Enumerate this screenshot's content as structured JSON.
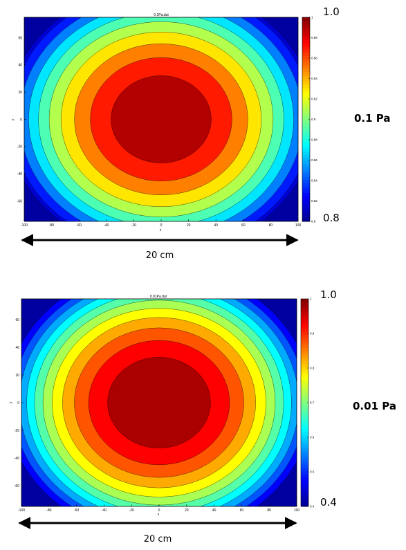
{
  "colors": {
    "jet": [
      "#00008f",
      "#0000ff",
      "#0080ff",
      "#00ffff",
      "#80ff80",
      "#ffff00",
      "#ff8000",
      "#ff0000",
      "#800000"
    ],
    "contour_line": "#000000",
    "arrow": "#000000"
  },
  "chart_data": [
    {
      "type": "heatmap",
      "title": "0.1Pa.dat",
      "xlabel": "x",
      "ylabel": "y",
      "xlim": [
        -100,
        100
      ],
      "ylim": [
        -75,
        75
      ],
      "xticks": [
        -100,
        -80,
        -60,
        -40,
        -20,
        0,
        20,
        40,
        60,
        80,
        100
      ],
      "yticks": [
        -60,
        -40,
        -20,
        0,
        20,
        40,
        60
      ],
      "ytick_labels": [
        "-60",
        "-40",
        "-20",
        "0",
        "20",
        "40",
        "60"
      ],
      "clim": [
        0.8,
        1.0
      ],
      "colorbar_ticks": [
        0.8,
        0.82,
        0.84,
        0.86,
        0.88,
        0.9,
        0.92,
        0.94,
        0.96,
        0.98,
        1.0
      ],
      "colorbar_tick_labels": [
        "0.8",
        "0.82",
        "0.84",
        "0.86",
        "0.88",
        "0.9",
        "0.92",
        "0.94",
        "0.96",
        "0.98",
        "1"
      ],
      "contour_levels": [
        0.82,
        0.84,
        0.86,
        0.88,
        0.9,
        0.92,
        0.94,
        0.96,
        0.98
      ],
      "peak": {
        "x": 0,
        "y": 0,
        "value": 1.0
      },
      "colorbar_max_label": "1.0",
      "colorbar_min_label": "0.8",
      "pressure_label": "0.1 Pa",
      "width_label": "20 cm"
    },
    {
      "type": "heatmap",
      "title": "0.01Pa.dat",
      "xlabel": "x",
      "ylabel": "y",
      "xlim": [
        -100,
        100
      ],
      "ylim": [
        -75,
        75
      ],
      "xticks": [
        -100,
        -80,
        -60,
        -40,
        -20,
        0,
        20,
        40,
        60,
        80,
        100
      ],
      "yticks": [
        -60,
        -40,
        -20,
        0,
        20,
        40,
        60
      ],
      "ytick_labels": [
        "-60",
        "-40",
        "-20",
        "0",
        "20",
        "40",
        "60"
      ],
      "clim": [
        0.4,
        1.0
      ],
      "colorbar_ticks": [
        0.4,
        0.5,
        0.6,
        0.7,
        0.8,
        0.9,
        1.0
      ],
      "colorbar_tick_labels": [
        "0.4",
        "0.5",
        "0.6",
        "0.7",
        "0.8",
        "0.9",
        "1"
      ],
      "contour_levels": [
        0.5,
        0.55,
        0.6,
        0.65,
        0.7,
        0.75,
        0.8,
        0.85,
        0.9,
        0.95
      ],
      "peak": {
        "x": 0,
        "y": 0,
        "value": 1.0
      },
      "colorbar_max_label": "1.0",
      "colorbar_min_label": "0.4",
      "pressure_label": "0.01 Pa",
      "width_label": "20 cm"
    }
  ]
}
